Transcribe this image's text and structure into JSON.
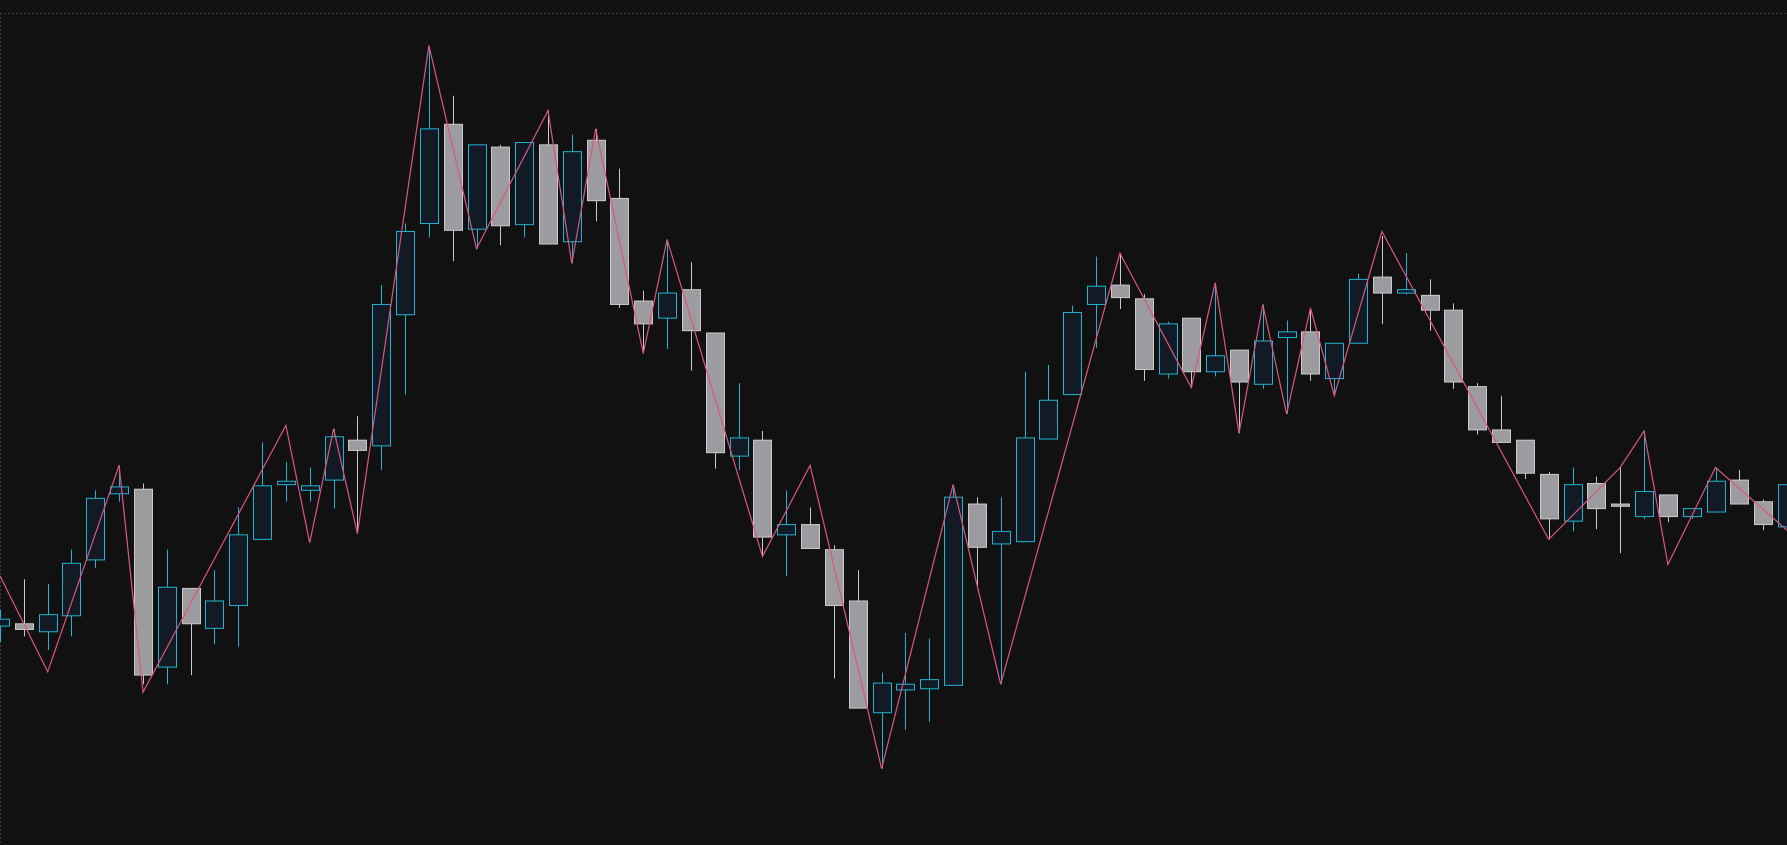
{
  "chart_data": {
    "type": "candlestick",
    "x": [
      0,
      1,
      2,
      3,
      4,
      5,
      6,
      7,
      8,
      9,
      10,
      11,
      12,
      13,
      14,
      15,
      16,
      17,
      18,
      19,
      20,
      21,
      22,
      23,
      24,
      25,
      26,
      27,
      28,
      29,
      30,
      31,
      32,
      33,
      34,
      35,
      36,
      37,
      38,
      39,
      40,
      41,
      42,
      43,
      44,
      45,
      46,
      47,
      48,
      49,
      50,
      51,
      52,
      53,
      54,
      55,
      56,
      57,
      58,
      59,
      60,
      61,
      62,
      63,
      64,
      65,
      66,
      67,
      68,
      69,
      70,
      71,
      72,
      73,
      74,
      75
    ],
    "open": [
      451,
      453,
      446,
      460,
      509,
      567,
      571,
      415,
      484,
      449,
      469,
      527,
      575,
      570,
      579,
      614,
      609,
      724,
      804,
      891,
      799,
      871,
      803,
      873,
      788,
      877,
      826,
      736,
      721,
      746,
      708,
      600,
      614,
      531,
      540,
      518,
      473,
      375,
      395,
      396,
      399,
      558,
      523,
      525,
      615,
      654,
      733,
      750,
      738,
      672,
      721,
      674,
      693,
      663,
      704,
      709,
      668,
      699,
      757,
      743,
      741,
      728,
      661,
      623,
      614,
      584,
      543,
      576,
      558,
      547,
      566,
      547,
      551,
      579,
      560,
      538
    ],
    "high": [
      465,
      492,
      488,
      518,
      570,
      592,
      576,
      518,
      484,
      500,
      555,
      612,
      595,
      590,
      624,
      635,
      750,
      804,
      960,
      916,
      873,
      873,
      875,
      903,
      882,
      887,
      852,
      745,
      790,
      770,
      708,
      664,
      622,
      570,
      555,
      522,
      500,
      410,
      445,
      440,
      575,
      564,
      564,
      674,
      680,
      732,
      775,
      778,
      742,
      718,
      721,
      752,
      693,
      733,
      719,
      730,
      699,
      760,
      793,
      778,
      755,
      734,
      664,
      653,
      614,
      586,
      590,
      582,
      590,
      622,
      566,
      554,
      590,
      588,
      562,
      575
    ],
    "low": [
      437,
      442,
      430,
      442,
      502,
      560,
      400,
      400,
      408,
      435,
      433,
      527,
      560,
      560,
      554,
      532,
      588,
      654,
      792,
      771,
      782,
      785,
      792,
      786,
      769,
      806,
      730,
      690,
      694,
      675,
      589,
      588,
      512,
      495,
      519,
      405,
      379,
      326,
      360,
      367,
      399,
      484,
      400,
      525,
      615,
      654,
      695,
      729,
      666,
      668,
      660,
      670,
      620,
      659,
      637,
      666,
      653,
      699,
      716,
      742,
      710,
      659,
      619,
      612,
      580,
      527,
      534,
      536,
      515,
      545,
      542,
      545,
      551,
      558,
      535,
      538
    ],
    "close": [
      457,
      448,
      461,
      506,
      563,
      573,
      408,
      485,
      453,
      473,
      531,
      574,
      578,
      574,
      617,
      605,
      733,
      797,
      887,
      798,
      873,
      802,
      875,
      786,
      867,
      824,
      733,
      716,
      743,
      710,
      603,
      616,
      529,
      540,
      519,
      469,
      379,
      401,
      400,
      404,
      564,
      520,
      534,
      616,
      649,
      726,
      749,
      739,
      676,
      716,
      674,
      688,
      665,
      701,
      709,
      672,
      699,
      755,
      743,
      746,
      728,
      665,
      623,
      612,
      585,
      545,
      575,
      554,
      556,
      569,
      547,
      554,
      578,
      558,
      540,
      575
    ],
    "up_color": "#1fb3d1",
    "up_fill": "#121a26",
    "down_color": "#c9c9cc",
    "down_fill": "#9c9ca0",
    "zigzag": {
      "color": "#d9577f",
      "x": [
        0,
        2,
        5,
        6,
        12,
        13,
        14,
        15,
        18,
        20,
        23,
        24,
        25,
        27,
        28,
        32,
        34,
        37,
        40,
        42,
        47,
        50,
        51,
        52,
        53,
        54,
        55,
        56,
        58,
        65,
        68,
        69,
        70,
        72,
        75
      ],
      "values": [
        495,
        411,
        592,
        393,
        627,
        524,
        624,
        532,
        960,
        782,
        903,
        769,
        887,
        690,
        790,
        512,
        592,
        326,
        575,
        400,
        778,
        660,
        752,
        620,
        733,
        637,
        730,
        653,
        797,
        527,
        590,
        622,
        505,
        590,
        535
      ]
    },
    "xlim": [
      0,
      75
    ],
    "ylim": [
      259,
      1000
    ],
    "grid": false
  }
}
